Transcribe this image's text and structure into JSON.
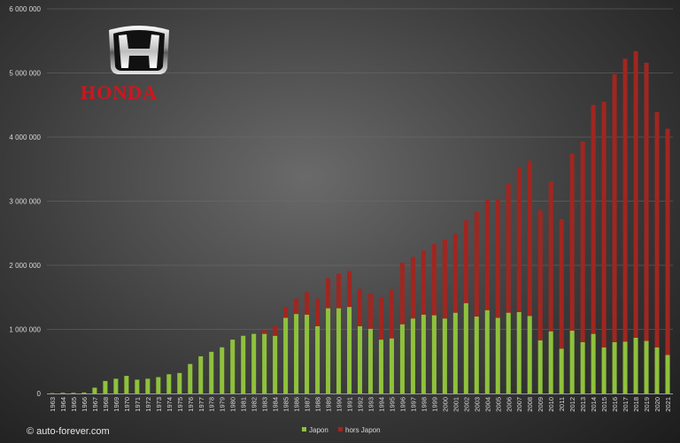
{
  "brand": {
    "name": "HONDA",
    "logo_icon": "honda-h-emblem-icon",
    "color": "#d4141c"
  },
  "copyright": "© auto-forever.com",
  "colors": {
    "japon": "#8fc13c",
    "hors_japon": "#a02620"
  },
  "chart_data": {
    "type": "bar",
    "stacked": true,
    "title": "",
    "xlabel": "",
    "ylabel": "",
    "ylim": [
      0,
      6000000
    ],
    "yticks": [
      0,
      1000000,
      2000000,
      3000000,
      4000000,
      5000000,
      6000000
    ],
    "ytick_labels": [
      "0",
      "1 000 000",
      "2 000 000",
      "3 000 000",
      "4 000 000",
      "5 000 000",
      "6 000 000"
    ],
    "grid": true,
    "legend_position": "bottom-center",
    "categories": [
      "1963",
      "1964",
      "1965",
      "1966",
      "1967",
      "1968",
      "1969",
      "1970",
      "1971",
      "1972",
      "1973",
      "1974",
      "1975",
      "1976",
      "1977",
      "1978",
      "1979",
      "1980",
      "1981",
      "1982",
      "1983",
      "1984",
      "1985",
      "1986",
      "1987",
      "1988",
      "1989",
      "1990",
      "1991",
      "1992",
      "1993",
      "1994",
      "1995",
      "1996",
      "1997",
      "1998",
      "1999",
      "2000",
      "2001",
      "2002",
      "2003",
      "2004",
      "2005",
      "2006",
      "2007",
      "2008",
      "2009",
      "2010",
      "2011",
      "2012",
      "2013",
      "2014",
      "2015",
      "2016",
      "2017",
      "2018",
      "2019",
      "2020",
      "2021"
    ],
    "series": [
      {
        "name": "Japon",
        "values": [
          5000,
          10000,
          10000,
          15000,
          90000,
          195000,
          230000,
          275000,
          215000,
          230000,
          255000,
          300000,
          320000,
          460000,
          580000,
          650000,
          720000,
          840000,
          900000,
          930000,
          930000,
          900000,
          1180000,
          1240000,
          1230000,
          1050000,
          1330000,
          1330000,
          1350000,
          1050000,
          1010000,
          840000,
          860000,
          1080000,
          1170000,
          1230000,
          1220000,
          1170000,
          1260000,
          1410000,
          1200000,
          1300000,
          1180000,
          1260000,
          1270000,
          1210000,
          830000,
          970000,
          700000,
          980000,
          800000,
          930000,
          720000,
          800000,
          810000,
          870000,
          820000,
          720000,
          600000
        ]
      },
      {
        "name": "hors Japon",
        "values": [
          0,
          0,
          0,
          0,
          0,
          0,
          0,
          0,
          0,
          0,
          0,
          0,
          0,
          0,
          0,
          0,
          0,
          0,
          0,
          0,
          60000,
          160000,
          170000,
          240000,
          350000,
          430000,
          470000,
          540000,
          560000,
          580000,
          550000,
          660000,
          760000,
          960000,
          960000,
          1000000,
          1110000,
          1230000,
          1230000,
          1290000,
          1640000,
          1720000,
          1850000,
          2010000,
          2260000,
          2420000,
          2030000,
          2340000,
          2020000,
          2760000,
          3130000,
          3570000,
          3830000,
          4180000,
          4410000,
          4470000,
          4340000,
          3670000,
          3530000
        ]
      }
    ]
  }
}
